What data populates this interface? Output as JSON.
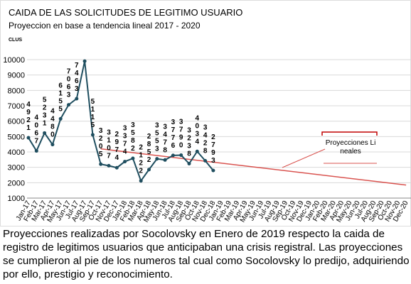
{
  "chart_data": {
    "type": "line",
    "title": "CAIDA DE LAS SOLICITUDES DE LEGITIMO USUARIO",
    "subtitle": "Proyeccion en base a tendencia lineal 2017 - 2020",
    "y_label": "CLUS",
    "categories": [
      "Jan-17",
      "Feb-17",
      "Mar-17",
      "Apr-17",
      "May-17",
      "Jun-17",
      "Jul-17",
      "Aug-17",
      "Sep-17",
      "Oct-17",
      "Nov-17",
      "Dec-17",
      "Jan-18",
      "Feb-18",
      "Mar-18",
      "Apr-18",
      "May-18",
      "Jun-18",
      "Jul-18",
      "Aug-18",
      "Sep-18",
      "Oct-18",
      "Nov-18",
      "Dec-18",
      "Jan-19",
      "Feb-19",
      "Mar-19",
      "Apr-19",
      "May-19",
      "Jun-19",
      "Jul-19",
      "Aug-19",
      "Sep-19",
      "Oct-19",
      "Nov-19",
      "Dec-19",
      "Jan-20",
      "Feb-20",
      "Mar-20",
      "Apr-20",
      "May-20",
      "Jun-20",
      "Jul-20",
      "Aug-20",
      "Sep-20",
      "Oct-20",
      "Nov-20",
      "Dec-20"
    ],
    "series": [
      {
        "name": "CLUS",
        "color": "#1f4e5f",
        "values": [
          4921,
          4067,
          5231,
          4480,
          6155,
          7063,
          7463,
          9900,
          5115,
          3205,
          3107,
          2974,
          3374,
          3582,
          2122,
          2852,
          3553,
          3478,
          3776,
          3790,
          3238,
          4034,
          3428,
          2793,
          null,
          null,
          null,
          null,
          null,
          null,
          null,
          null,
          null,
          null,
          null,
          null,
          null,
          null,
          null,
          null,
          null,
          null,
          null,
          null,
          null,
          null,
          null,
          null
        ],
        "value_labels": [
          "4921",
          "4067",
          "5231",
          "4480",
          "6155",
          "7063",
          "7463",
          null,
          "5115",
          "3205",
          "3107",
          "2974",
          "3374",
          "3582",
          "2122",
          "2852",
          "3553",
          "3478",
          "3776",
          "3790",
          "3238",
          "4034",
          "3428",
          "2793",
          null,
          null,
          null,
          null,
          null,
          null,
          null,
          null,
          null,
          null,
          null,
          null,
          null,
          null,
          null,
          null,
          null,
          null,
          null,
          null,
          null,
          null,
          null,
          null
        ]
      }
    ],
    "trendline": {
      "name": "Proyecciones Lineales",
      "color": "#d9534f",
      "from": [
        "Oct-17",
        4200
      ],
      "to": [
        "Dec-20",
        1850
      ]
    },
    "ylim": [
      1000,
      10000
    ],
    "yticks": [
      1000,
      2000,
      3000,
      4000,
      5000,
      6000,
      7000,
      8000,
      9000,
      10000
    ],
    "grid": true
  },
  "caption": "Proyecciones realizadas por Socolovsky en Enero de 2019 respecto la caida de registro de legitimos usuarios que anticipaban una crisis registral. Las proyecciones se cumplieron al pie de los numeros tal cual como Socolovsky lo predijo, adquiriendo por ello, prestigio y reconocimiento."
}
